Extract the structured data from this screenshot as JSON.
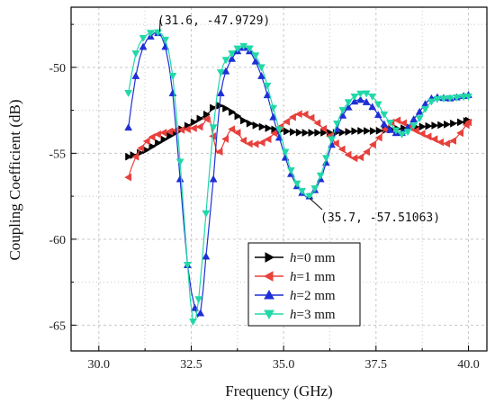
{
  "colors": {
    "h0": "#000000",
    "h1": "#e8403c",
    "h2": "#1f2fd6",
    "h3": "#20d8a8",
    "grid": "#c8c8c8"
  },
  "chart_data": {
    "type": "line",
    "title": "",
    "xlabel": "Frequency (GHz)",
    "ylabel": "Coupling Coefficient (dB)",
    "xlim": [
      29.25,
      40.5
    ],
    "ylim": [
      -66.5,
      -46.5
    ],
    "xticks": [
      "30.0",
      "32.5",
      "35.0",
      "37.5",
      "40.0"
    ],
    "yticks": [
      "-50",
      "-55",
      "-60",
      "-65"
    ],
    "grid": true,
    "legend_position": "bottom-center",
    "legend": [
      {
        "var": "h",
        "text": "=0 mm",
        "marker": "triangle-right",
        "color_key": "h0"
      },
      {
        "var": "h",
        "text": "=1 mm",
        "marker": "triangle-left",
        "color_key": "h1"
      },
      {
        "var": "h",
        "text": "=2 mm",
        "marker": "triangle-up",
        "color_key": "h2"
      },
      {
        "var": "h",
        "text": "=3 mm",
        "marker": "triangle-down",
        "color_key": "h3"
      }
    ],
    "annotations": [
      {
        "text": "(31.6,  -47.9729)",
        "x": 31.6,
        "y": -47.9729
      },
      {
        "text": "(35.7,  -57.51063)",
        "x": 35.7,
        "y": -57.51063
      }
    ],
    "series": [
      {
        "key": "h0",
        "marker": "triangle-right",
        "x": [
          30.8,
          31.2,
          31.6,
          32.0,
          32.4,
          32.8,
          33.0,
          33.2,
          33.6,
          34.0,
          34.5,
          35.0,
          35.5,
          36.0,
          36.5,
          37.0,
          37.5,
          38.0,
          38.5,
          39.0,
          39.5,
          40.0
        ],
        "y": [
          -55.2,
          -54.9,
          -54.4,
          -53.9,
          -53.4,
          -52.9,
          -52.6,
          -52.2,
          -52.6,
          -53.2,
          -53.5,
          -53.7,
          -53.8,
          -53.8,
          -53.8,
          -53.7,
          -53.7,
          -53.6,
          -53.5,
          -53.4,
          -53.3,
          -53.1
        ]
      },
      {
        "key": "h1",
        "marker": "triangle-left",
        "x": [
          30.8,
          31.0,
          31.3,
          31.6,
          32.0,
          32.4,
          32.8,
          33.0,
          33.2,
          33.6,
          34.0,
          34.5,
          35.0,
          35.5,
          36.0,
          36.5,
          37.0,
          37.5,
          38.0,
          38.5,
          39.0,
          39.5,
          40.0
        ],
        "y": [
          -56.4,
          -55.2,
          -54.3,
          -53.9,
          -53.7,
          -53.6,
          -53.4,
          -52.9,
          -55.0,
          -53.6,
          -54.4,
          -54.3,
          -53.3,
          -52.7,
          -53.4,
          -54.6,
          -55.3,
          -54.3,
          -53.1,
          -53.6,
          -54.1,
          -54.4,
          -53.2
        ]
      },
      {
        "key": "h2",
        "marker": "triangle-up",
        "x": [
          30.8,
          31.0,
          31.2,
          31.4,
          31.6,
          31.8,
          32.0,
          32.2,
          32.4,
          32.6,
          32.75,
          32.9,
          33.1,
          33.3,
          33.6,
          34.0,
          34.4,
          34.8,
          35.2,
          35.5,
          35.7,
          36.0,
          36.3,
          36.6,
          37.0,
          37.4,
          37.8,
          38.2,
          38.6,
          39.0,
          39.5,
          40.0
        ],
        "y": [
          -53.5,
          -50.5,
          -48.8,
          -48.2,
          -48.0,
          -48.8,
          -51.5,
          -56.5,
          -61.5,
          -64.0,
          -64.3,
          -61.0,
          -56.5,
          -51.5,
          -49.5,
          -48.9,
          -50.5,
          -53.5,
          -56.2,
          -57.3,
          -57.5,
          -56.5,
          -54.5,
          -52.8,
          -51.9,
          -52.3,
          -53.5,
          -53.8,
          -52.8,
          -51.8,
          -51.8,
          -51.6
        ]
      },
      {
        "key": "h3",
        "marker": "triangle-down",
        "x": [
          30.8,
          31.0,
          31.2,
          31.4,
          31.6,
          31.8,
          32.0,
          32.2,
          32.4,
          32.55,
          32.7,
          32.9,
          33.1,
          33.3,
          33.6,
          34.0,
          34.4,
          34.8,
          35.2,
          35.5,
          35.7,
          36.0,
          36.3,
          36.6,
          37.0,
          37.4,
          37.8,
          38.2,
          38.6,
          39.0,
          39.5,
          40.0
        ],
        "y": [
          -51.5,
          -49.2,
          -48.3,
          -48.0,
          -47.97,
          -48.4,
          -50.5,
          -55.5,
          -61.5,
          -64.8,
          -63.5,
          -58.5,
          -53.5,
          -50.3,
          -49.2,
          -48.8,
          -50.0,
          -53.0,
          -56.0,
          -57.2,
          -57.5,
          -56.3,
          -54.2,
          -52.5,
          -51.6,
          -51.7,
          -53.0,
          -53.9,
          -53.2,
          -52.0,
          -51.8,
          -51.7
        ]
      }
    ]
  }
}
